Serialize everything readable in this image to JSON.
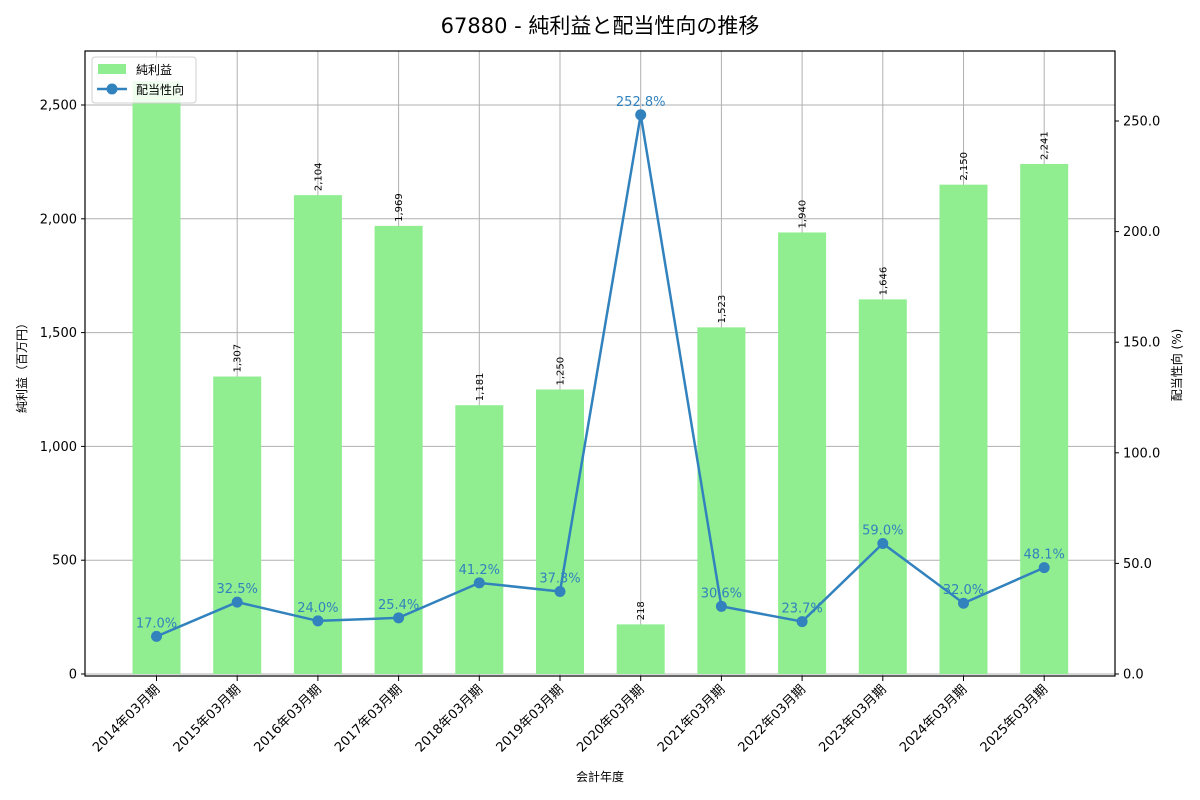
{
  "title": "67880 - 純利益と配当性向の推移",
  "chart_data": {
    "type": "bar+line",
    "title": "67880 - 純利益と配当性向の推移",
    "xlabel": "会計年度",
    "ylabel_left": "純利益（百万円）",
    "ylabel_right": "配当性向 (%)",
    "categories": [
      "2014年03月期",
      "2015年03月期",
      "2016年03月期",
      "2017年03月期",
      "2018年03月期",
      "2019年03月期",
      "2020年03月期",
      "2021年03月期",
      "2022年03月期",
      "2023年03月期",
      "2024年03月期",
      "2025年03月期"
    ],
    "series": [
      {
        "name": "純利益",
        "type": "bar",
        "axis": "left",
        "color": "#90ee90",
        "values": [
          2605,
          1307,
          2104,
          1969,
          1181,
          1250,
          218,
          1523,
          1940,
          1646,
          2150,
          2241
        ],
        "labels": [
          "",
          "1,307",
          "2,104",
          "1,969",
          "1,181",
          "1,250",
          "218",
          "1,523",
          "1,940",
          "1,646",
          "2,150",
          "2,241"
        ],
        "note": "2014年03月期 bar exceeds the axis top; its value label is clipped and not legible (value estimated)"
      },
      {
        "name": "配当性向",
        "type": "line",
        "axis": "right",
        "color": "#3182bd",
        "values": [
          17.0,
          32.5,
          24.0,
          25.4,
          41.2,
          37.3,
          252.8,
          30.6,
          23.7,
          59.0,
          32.0,
          48.1
        ],
        "labels": [
          "17.0%",
          "32.5%",
          "24.0%",
          "25.4%",
          "41.2%",
          "37.3%",
          "252.8%",
          "30.6%",
          "23.7%",
          "59.0%",
          "32.0%",
          "48.1%"
        ]
      }
    ],
    "ylim_left": [
      -12,
      2737
    ],
    "ylim_right": [
      -1,
      282
    ],
    "yticks_left": [
      "0",
      "500",
      "1,000",
      "1,500",
      "2,000",
      "2,500"
    ],
    "yticks_right": [
      "0.0",
      "50.0",
      "100.0",
      "150.0",
      "200.0",
      "250.0"
    ],
    "grid": true,
    "legend_position": "upper left"
  },
  "legend": [
    {
      "label": "純利益"
    },
    {
      "label": "配当性向"
    }
  ]
}
